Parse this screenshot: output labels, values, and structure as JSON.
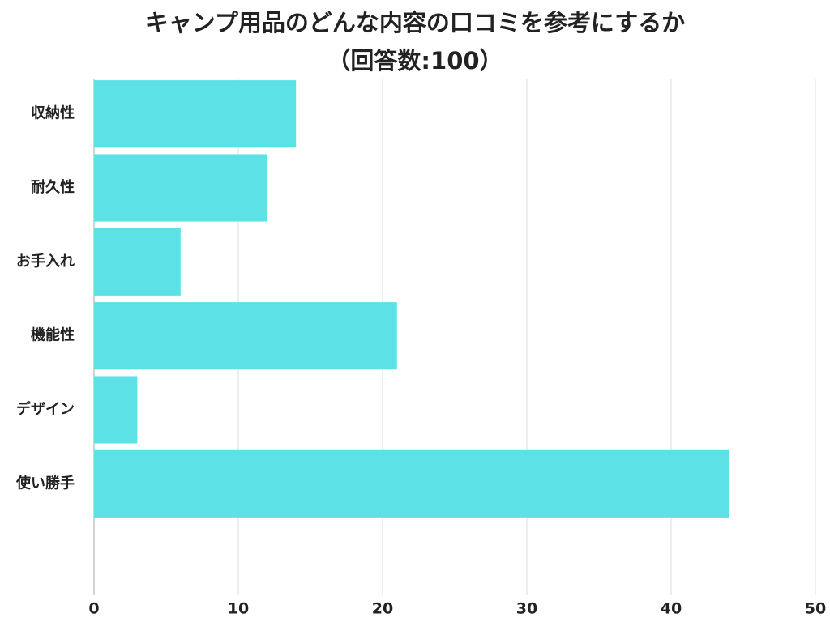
{
  "chart_data": {
    "type": "bar",
    "orientation": "horizontal",
    "title": "キャンプ用品のどんな内容の口コミを参考にするか",
    "subtitle": "（回答数:100）",
    "categories": [
      "収納性",
      "耐久性",
      "お手入れ",
      "機能性",
      "デザイン",
      "使い勝手"
    ],
    "values": [
      14,
      12,
      6,
      21,
      3,
      44
    ],
    "color": "#5ce1e6",
    "xlim": [
      0,
      50
    ],
    "xticks": [
      0,
      10,
      20,
      30,
      40,
      50
    ],
    "grid": true
  }
}
